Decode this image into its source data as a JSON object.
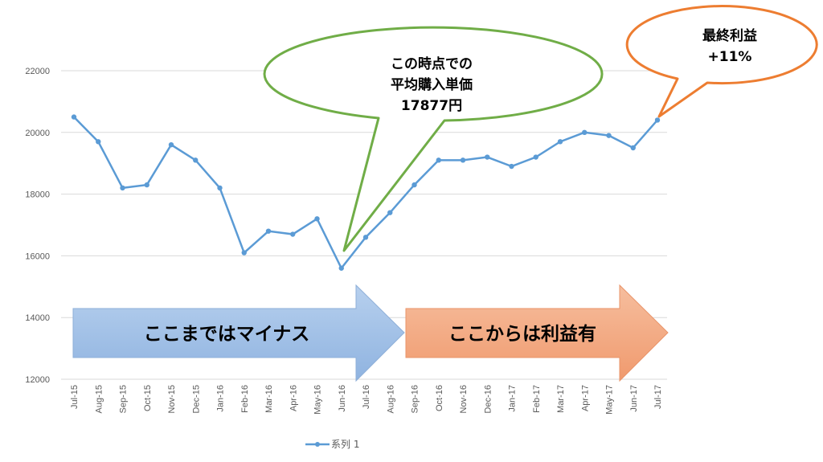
{
  "chart_data": {
    "type": "line",
    "categories": [
      "Jul-15",
      "Aug-15",
      "Sep-15",
      "Oct-15",
      "Nov-15",
      "Dec-15",
      "Jan-16",
      "Feb-16",
      "Mar-16",
      "Apr-16",
      "May-16",
      "Jun-16",
      "Jul-16",
      "Aug-16",
      "Sep-16",
      "Oct-16",
      "Nov-16",
      "Dec-16",
      "Jan-17",
      "Feb-17",
      "Mar-17",
      "Apr-17",
      "May-17",
      "Jun-17",
      "Jul-17"
    ],
    "series": [
      {
        "name": "系列 1",
        "values": [
          20500,
          19700,
          18200,
          18300,
          19600,
          19100,
          18200,
          16100,
          16800,
          16700,
          17200,
          15600,
          16600,
          17400,
          18300,
          19100,
          19100,
          19200,
          18900,
          19200,
          19700,
          20000,
          19900,
          19500,
          20400
        ]
      }
    ],
    "yticks": [
      12000,
      14000,
      16000,
      18000,
      20000,
      22000
    ],
    "ylim": [
      12000,
      23000
    ],
    "grid": true,
    "legend": "bottom",
    "colors": {
      "line": "#5B9BD5",
      "grid": "#D9D9D9"
    }
  },
  "callouts": {
    "purchase": {
      "lines": [
        "この時点での",
        "平均購入単価",
        "17877円"
      ],
      "border": "#70AD47"
    },
    "profit": {
      "lines": [
        "最終利益",
        "+11%"
      ],
      "border": "#ED7D31"
    }
  },
  "arrows": {
    "minus": {
      "label": "ここまではマイナス",
      "fill": "#A4C2E8"
    },
    "plus": {
      "label": "ここからは利益有",
      "fill": "#F4B08A"
    }
  }
}
